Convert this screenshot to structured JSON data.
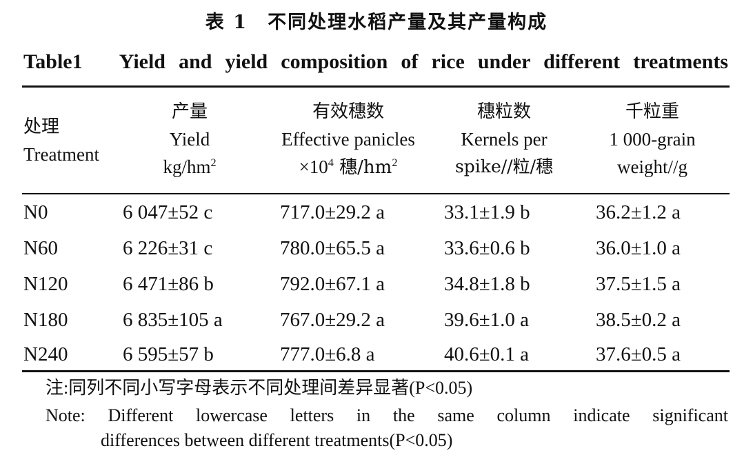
{
  "title_cn": "表 1　不同处理水稻产量及其产量构成",
  "title_en": "Table1　Yield and yield composition of rice under different treatments",
  "headers": {
    "treatment": {
      "cn": "处理",
      "en": "Treatment"
    },
    "yield": {
      "cn": "产量",
      "en": "Yield",
      "unit": "kg/hm",
      "unit_sup": "2"
    },
    "panicles": {
      "cn": "有效穗数",
      "en": "Effective panicles",
      "unit_pre": "×10",
      "unit_pre_sup": "4",
      "unit": " 穗/hm",
      "unit_sup": "2"
    },
    "kernels": {
      "cn": "穗粒数",
      "en": "Kernels per",
      "unit": "spike//粒/穗"
    },
    "grain": {
      "cn": "千粒重",
      "en": "1 000-grain",
      "unit": "weight//g"
    }
  },
  "rows": [
    {
      "treatment": "N0",
      "yield": "6 047±52 c",
      "panicles": "717.0±29.2 a",
      "kernels": "33.1±1.9 b",
      "grain": "36.2±1.2 a"
    },
    {
      "treatment": "N60",
      "yield": "6 226±31 c",
      "panicles": "780.0±65.5 a",
      "kernels": "33.6±0.6 b",
      "grain": "36.0±1.0 a"
    },
    {
      "treatment": "N120",
      "yield": "6 471±86 b",
      "panicles": "792.0±67.1 a",
      "kernels": "34.8±1.8 b",
      "grain": "37.5±1.5 a"
    },
    {
      "treatment": "N180",
      "yield": "6 835±105 a",
      "panicles": "767.0±29.2 a",
      "kernels": "39.6±1.0 a",
      "grain": "38.5±0.2 a"
    },
    {
      "treatment": "N240",
      "yield": "6 595±57 b",
      "panicles": "777.0±6.8 a",
      "kernels": "40.6±0.1 a",
      "grain": "37.6±0.5 a"
    }
  ],
  "notes": {
    "cn": "注:同列不同小写字母表示不同处理间差异显著(P<0.05)",
    "en_line1": "Note: Different lowercase letters in the same column indicate significant",
    "en_line2": "differences between different treatments(P<0.05)"
  }
}
